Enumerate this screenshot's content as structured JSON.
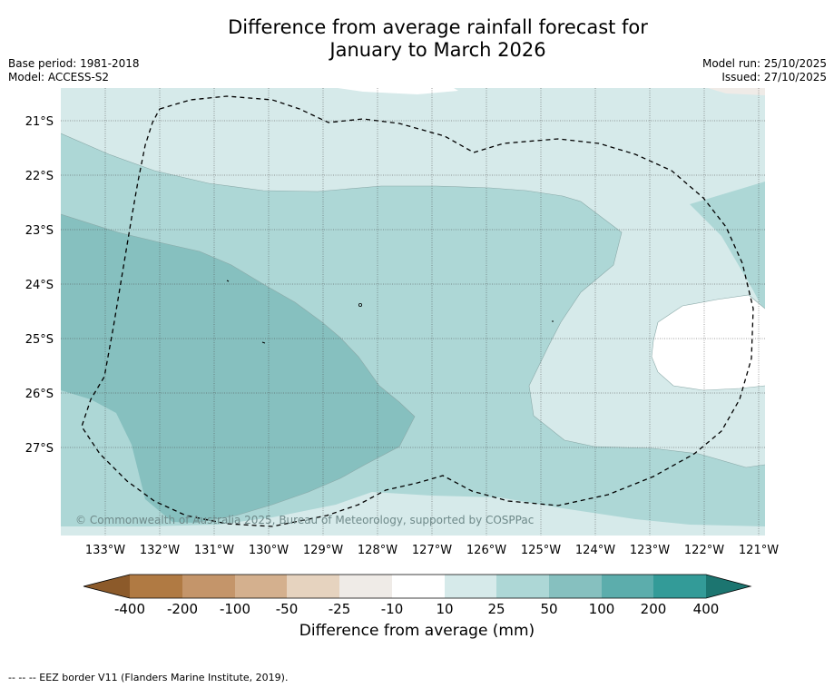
{
  "title_line1": "Difference from average rainfall forecast for",
  "title_line2": "January to March 2026",
  "base_period": "Base period: 1981-2018",
  "model": "Model: ACCESS-S2",
  "model_run": "Model run: 25/10/2025",
  "issued": "Issued: 27/10/2025",
  "copyright": "© Commonwealth of Australia 2025, Bureau of Meteorology, supported by COSPPac",
  "legend_text": "--  --  -- EEZ border V11 (Flanders Marine Institute, 2019).",
  "map": {
    "lat_labels": [
      "21°S",
      "22°S",
      "23°S",
      "24°S",
      "25°S",
      "26°S",
      "27°S"
    ],
    "lon_labels": [
      "133°W",
      "132°W",
      "131°W",
      "130°W",
      "129°W",
      "128°W",
      "127°W",
      "126°W",
      "125°W",
      "124°W",
      "123°W",
      "122°W",
      "121°W"
    ]
  },
  "colorbar": {
    "label": "Difference from average (mm)",
    "ticks": [
      "-400",
      "-200",
      "-100",
      "-50",
      "-25",
      "-10",
      "10",
      "25",
      "50",
      "100",
      "200",
      "400"
    ],
    "colors": [
      "#8c5a2a",
      "#b07a43",
      "#c4956a",
      "#d4b08e",
      "#e6d3bf",
      "#efebe7",
      "#ffffff",
      "#d6eaea",
      "#add7d6",
      "#86c0bf",
      "#5cadac",
      "#339b98",
      "#1c7570"
    ]
  }
}
